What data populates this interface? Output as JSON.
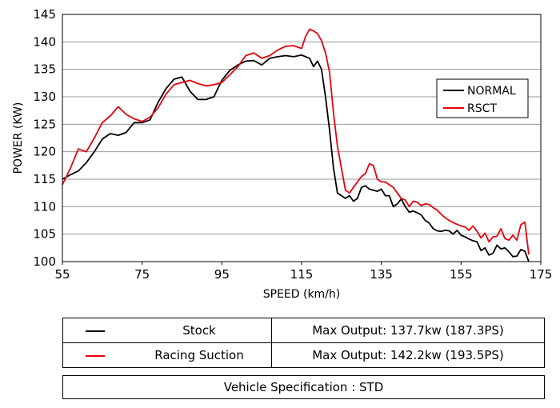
{
  "chart_data": {
    "type": "line",
    "xlabel": "SPEED (km/h)",
    "ylabel": "POWER (KW)",
    "xlim": [
      55,
      175
    ],
    "ylim": [
      100,
      145
    ],
    "xticks": [
      55,
      75,
      95,
      115,
      135,
      155,
      175
    ],
    "yticks": [
      100,
      105,
      110,
      115,
      120,
      125,
      130,
      135,
      140,
      145
    ],
    "grid": "horizontal",
    "legend_position": "right",
    "series": [
      {
        "name": "NORMAL",
        "color": "#000000",
        "x": [
          55,
          57,
          59,
          61,
          63,
          65,
          67,
          69,
          71,
          73,
          75,
          77,
          79,
          81,
          83,
          85,
          87,
          89,
          91,
          93,
          95,
          97,
          99,
          101,
          103,
          105,
          107,
          109,
          111,
          113,
          115,
          117,
          118,
          119,
          120,
          121,
          122,
          123,
          124,
          125,
          126,
          127,
          128,
          129,
          130,
          131,
          132,
          133,
          134,
          135,
          136,
          137,
          138,
          139,
          140,
          141,
          142,
          143,
          144,
          145,
          146,
          147,
          148,
          149,
          150,
          151,
          152,
          153,
          154,
          155,
          156,
          157,
          158,
          159,
          160,
          161,
          162,
          163,
          164,
          165,
          166,
          167,
          168,
          169,
          170,
          171,
          172
        ],
        "values": [
          115,
          115.8,
          116.5,
          118,
          120,
          122.3,
          123.3,
          123,
          123.5,
          125.3,
          125.3,
          125.8,
          129,
          131.5,
          133.2,
          133.6,
          131,
          129.5,
          129.5,
          130,
          133,
          134.8,
          135.8,
          136.5,
          136.6,
          135.8,
          137,
          137.3,
          137.5,
          137.3,
          137.6,
          137,
          135.5,
          136.5,
          135,
          130,
          124,
          117,
          112.5,
          112,
          111.5,
          112,
          111,
          111.5,
          113.5,
          113.8,
          113.2,
          113,
          112.8,
          113.2,
          112,
          112,
          110,
          110.5,
          111.4,
          110,
          109,
          109.2,
          108.9,
          108.5,
          107.5,
          107,
          106,
          105.6,
          105.5,
          105.7,
          105.6,
          105,
          105.7,
          104.8,
          104.5,
          104.1,
          103.8,
          103.6,
          102,
          102.5,
          101.2,
          101.5,
          103,
          102.3,
          102.5,
          101.8,
          100.9,
          101,
          102.2,
          101.9,
          100
        ]
      },
      {
        "name": "RSCT",
        "color": "#e8000b",
        "x": [
          55,
          57,
          59,
          61,
          63,
          65,
          67,
          69,
          71,
          73,
          75,
          77,
          79,
          81,
          83,
          85,
          87,
          89,
          91,
          93,
          95,
          97,
          99,
          101,
          103,
          105,
          107,
          109,
          111,
          113,
          115,
          116,
          117,
          118,
          119,
          120,
          121,
          122,
          123,
          124,
          125,
          126,
          127,
          128,
          129,
          130,
          131,
          132,
          133,
          134,
          135,
          136,
          137,
          138,
          139,
          140,
          141,
          142,
          143,
          144,
          145,
          146,
          147,
          148,
          149,
          150,
          151,
          152,
          153,
          154,
          155,
          156,
          157,
          158,
          159,
          160,
          161,
          162,
          163,
          164,
          165,
          166,
          167,
          168,
          169,
          170,
          171,
          172
        ],
        "values": [
          114,
          117,
          120.5,
          120,
          122.5,
          125.3,
          126.5,
          128.2,
          126.8,
          126,
          125.5,
          126.3,
          128,
          130.5,
          132.2,
          132.6,
          133,
          132.4,
          132,
          132.2,
          132.6,
          134,
          135.5,
          137.5,
          138,
          137,
          137.5,
          138.5,
          139.2,
          139.3,
          138.8,
          141,
          142.3,
          142,
          141.5,
          140.2,
          138,
          134.5,
          127,
          121,
          117,
          113,
          112.5,
          113.5,
          114.5,
          115.5,
          116,
          117.8,
          117.5,
          115,
          114.5,
          114.5,
          114,
          113.5,
          112.5,
          111.5,
          111.2,
          110,
          111,
          110.8,
          110.2,
          110.5,
          110.4,
          109.8,
          109.4,
          108.6,
          108,
          107.5,
          107.1,
          106.8,
          106.5,
          106.3,
          105.7,
          106.5,
          105.5,
          104.3,
          105.2,
          103.6,
          104.5,
          104.6,
          106,
          104.2,
          103.9,
          104.8,
          103.9,
          106.7,
          107.2,
          101.3
        ]
      }
    ]
  },
  "table": {
    "rows": [
      {
        "name": "Stock",
        "value": "Max Output: 137.7kw (187.3PS)",
        "color": "#000000"
      },
      {
        "name": "Racing Suction",
        "value": "Max Output: 142.2kw (193.5PS)",
        "color": "#e8000b"
      }
    ],
    "spec": "Vehicle Specification : STD"
  }
}
